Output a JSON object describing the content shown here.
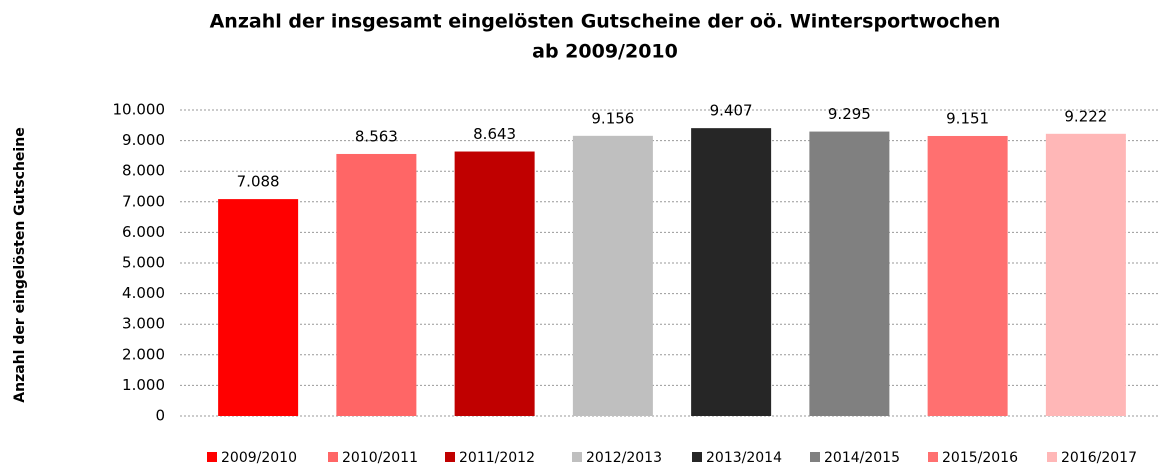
{
  "chart_data": {
    "type": "bar",
    "title": [
      "Anzahl der insgesamt eingelösten Gutscheine der oö. Wintersportwochen",
      "ab 2009/2010"
    ],
    "y_label": "Anzahl der eingelösten Gutscheine",
    "categories": [
      "2009/2010",
      "2010/2011",
      "2011/2012",
      "2012/2013",
      "2013/2014",
      "2014/2015",
      "2015/2016",
      "2016/2017"
    ],
    "values": [
      7088,
      8563,
      8643,
      9156,
      9407,
      9295,
      9151,
      9222
    ],
    "value_labels": [
      "7.088",
      "8.563",
      "8.643",
      "9.156",
      "9.407",
      "9.295",
      "9.151",
      "9.222"
    ],
    "colors": [
      "#ff0000",
      "#ff6666",
      "#c00000",
      "#bfbfbf",
      "#262626",
      "#808080",
      "#ff7070",
      "#ffb7b7"
    ],
    "ylim": [
      0,
      10000
    ],
    "yticks": [
      0,
      {
        "value": 1000,
        "label": "1.000"
      },
      {
        "value": 2000,
        "label": "2.000"
      },
      {
        "value": 3000,
        "label": "3.000"
      },
      {
        "value": 4000,
        "label": "4.000"
      },
      {
        "value": 5000,
        "label": "5.000"
      },
      {
        "value": 6000,
        "label": "6.000"
      },
      {
        "value": 7000,
        "label": "7.000"
      },
      {
        "value": 8000,
        "label": "8.000"
      },
      {
        "value": 9000,
        "label": "9.000"
      },
      {
        "value": 10000,
        "label": "10.000"
      }
    ],
    "grid": true,
    "legend": "bottom"
  }
}
